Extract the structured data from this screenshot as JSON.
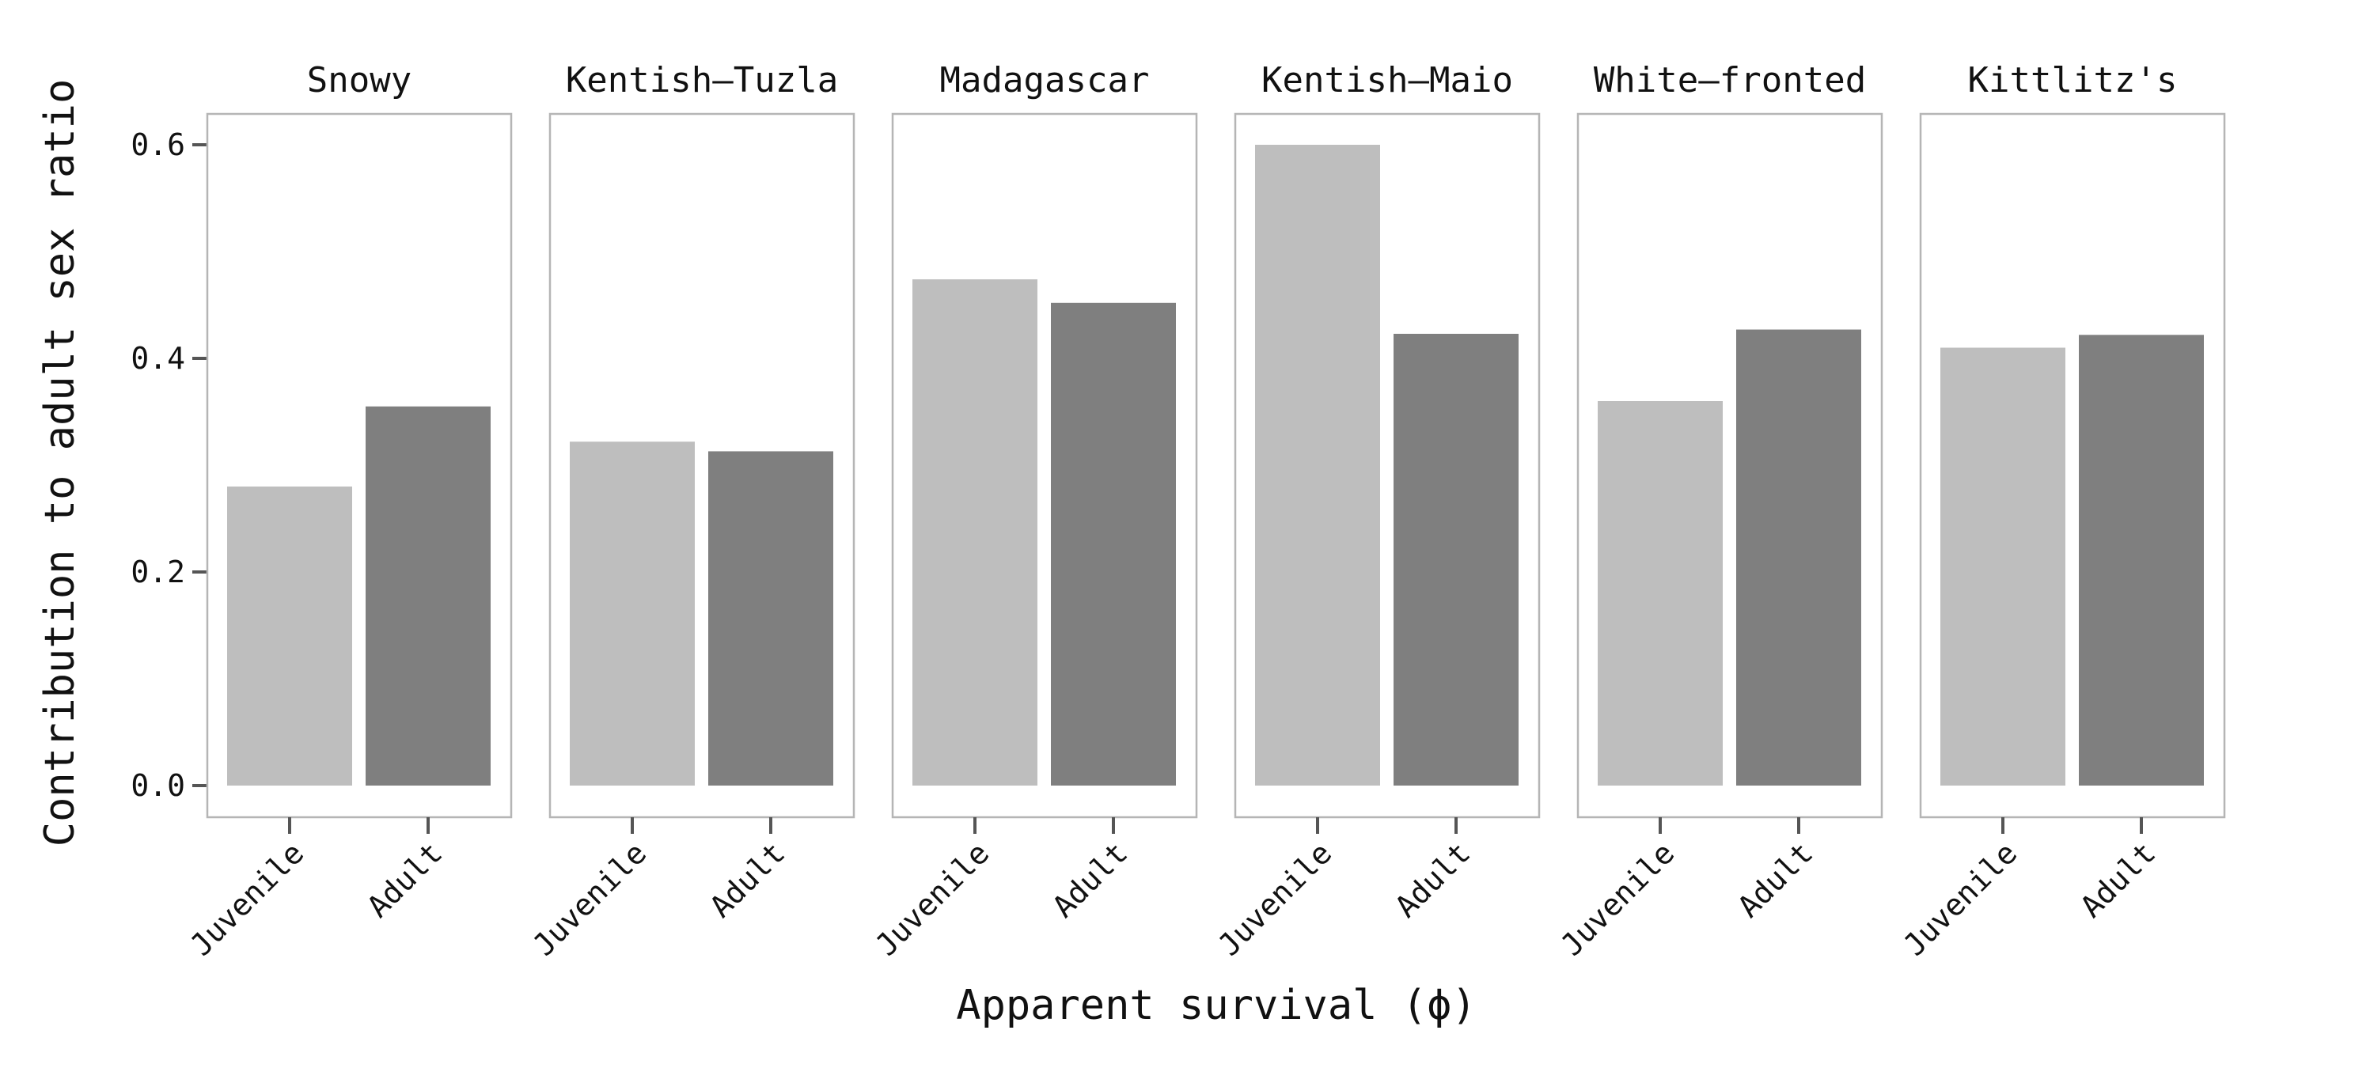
{
  "chart_data": {
    "type": "bar",
    "facets": [
      "Snowy",
      "Kentish–Tuzla",
      "Madagascar",
      "Kentish–Maio",
      "White–fronted",
      "Kittlitz's"
    ],
    "categories": [
      "Juvenile",
      "Adult"
    ],
    "values": [
      [
        0.28,
        0.355
      ],
      [
        0.322,
        0.313
      ],
      [
        0.474,
        0.452
      ],
      [
        0.6,
        0.423
      ],
      [
        0.36,
        0.427
      ],
      [
        0.41,
        0.422
      ]
    ],
    "colors": {
      "Juvenile": "#bebebe",
      "Adult": "#7f7f7f"
    },
    "xlabel": "Apparent survival (ϕ)",
    "ylabel": "Contribution to adult sex ratio",
    "ylim": [
      0.0,
      0.6
    ],
    "yticks": [
      "0.0",
      "0.2",
      "0.4",
      "0.6"
    ],
    "grid": false,
    "legend": "none"
  }
}
